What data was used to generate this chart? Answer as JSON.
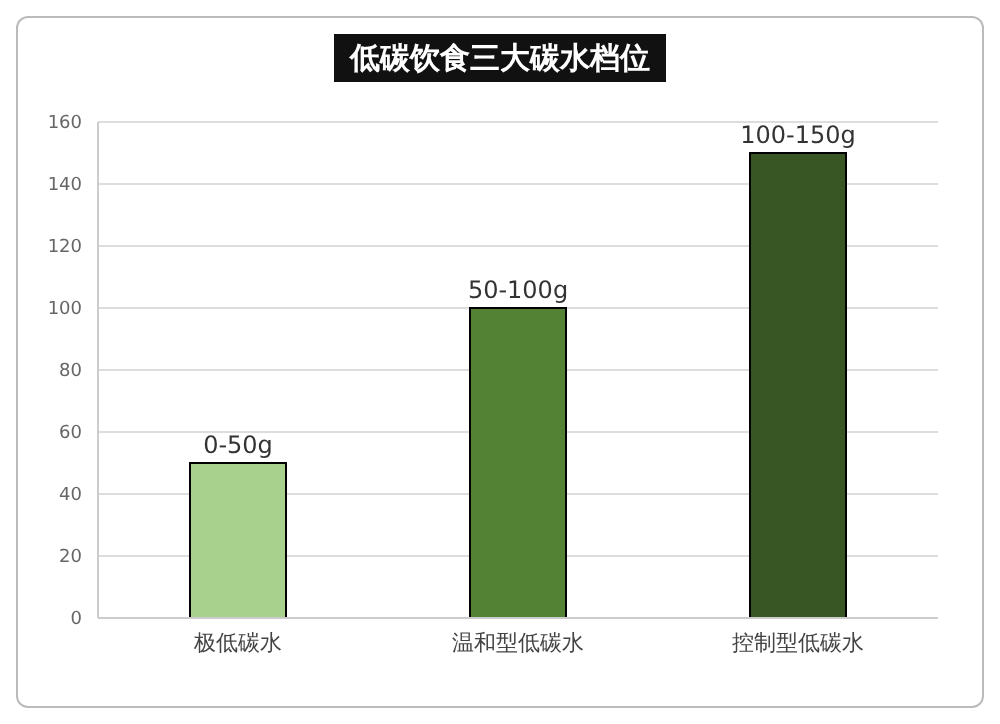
{
  "chart_data": {
    "type": "bar",
    "title": "低碳饮食三大碳水档位",
    "categories": [
      "极低碳水",
      "温和型低碳水",
      "控制型低碳水"
    ],
    "values": [
      50,
      100,
      150
    ],
    "colors": [
      "#a9d18e",
      "#548235",
      "#375623"
    ],
    "value_labels": [
      "0-50g",
      "50-100g",
      "100-150g"
    ],
    "ylim": [
      0,
      160
    ],
    "yticks": [
      0,
      20,
      40,
      60,
      80,
      100,
      120,
      140,
      160
    ],
    "grid": "y"
  }
}
